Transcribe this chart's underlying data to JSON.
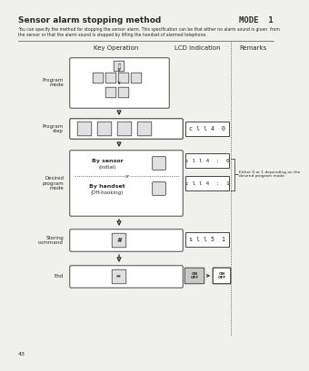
{
  "title": "Sensor alarm stopping method",
  "mode_label": "MODE  1",
  "description": "You can specify the method for stopping the sensor alarm. This specification can be that either no alarm sound is given  from\nthe sensor or that the alarm sound is stopped by lifting the handset of alarmed telephone.",
  "col_headers": [
    "Key Operation",
    "LCD indication",
    "Remarks"
  ],
  "row_labels": [
    "Program\nmode",
    "Program\nstep",
    "Desired\nprogram\nmode",
    "Storing\ncommand",
    "End"
  ],
  "lcd_texts": [
    "c l l 4  0",
    "c l l 4  :  0",
    "c l l 4  :  1",
    "s l l 5  1"
  ],
  "remark_text": "Either 0 or 1 depending on the\ndesired program mode.",
  "page_number": "43",
  "bg_color": "#f0f0ec",
  "box_color": "#ffffff",
  "line_color": "#2a2a2a",
  "key_face": "#e0e0e0"
}
